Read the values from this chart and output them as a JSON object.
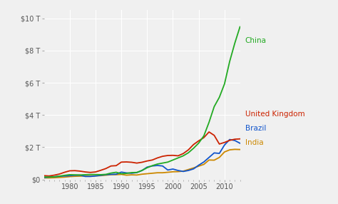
{
  "years": [
    1975,
    1976,
    1977,
    1978,
    1979,
    1980,
    1981,
    1982,
    1983,
    1984,
    1985,
    1986,
    1987,
    1988,
    1989,
    1990,
    1991,
    1992,
    1993,
    1994,
    1995,
    1996,
    1997,
    1998,
    1999,
    2000,
    2001,
    2002,
    2003,
    2004,
    2005,
    2006,
    2007,
    2008,
    2009,
    2010,
    2011,
    2012,
    2013
  ],
  "china": [
    0.16,
    0.15,
    0.17,
    0.21,
    0.26,
    0.3,
    0.29,
    0.28,
    0.3,
    0.31,
    0.31,
    0.3,
    0.32,
    0.4,
    0.45,
    0.36,
    0.38,
    0.43,
    0.44,
    0.56,
    0.73,
    0.86,
    0.96,
    1.02,
    1.08,
    1.21,
    1.34,
    1.47,
    1.66,
    1.94,
    2.26,
    2.71,
    3.55,
    4.52,
    5.1,
    5.93,
    7.32,
    8.46,
    9.47
  ],
  "uk": [
    0.24,
    0.22,
    0.27,
    0.34,
    0.45,
    0.54,
    0.55,
    0.52,
    0.47,
    0.44,
    0.47,
    0.57,
    0.68,
    0.84,
    0.86,
    1.08,
    1.09,
    1.07,
    1.02,
    1.07,
    1.15,
    1.21,
    1.34,
    1.44,
    1.49,
    1.5,
    1.47,
    1.61,
    1.84,
    2.17,
    2.4,
    2.6,
    2.95,
    2.74,
    2.2,
    2.3,
    2.43,
    2.5,
    2.52
  ],
  "brazil": [
    0.12,
    0.15,
    0.17,
    0.2,
    0.22,
    0.24,
    0.26,
    0.27,
    0.19,
    0.19,
    0.22,
    0.26,
    0.3,
    0.32,
    0.33,
    0.46,
    0.41,
    0.39,
    0.43,
    0.56,
    0.77,
    0.84,
    0.87,
    0.84,
    0.59,
    0.65,
    0.56,
    0.5,
    0.56,
    0.66,
    0.89,
    1.09,
    1.37,
    1.65,
    1.62,
    2.14,
    2.48,
    2.42,
    2.25
  ],
  "india": [
    0.1,
    0.1,
    0.11,
    0.13,
    0.15,
    0.18,
    0.2,
    0.21,
    0.22,
    0.21,
    0.23,
    0.24,
    0.27,
    0.3,
    0.3,
    0.32,
    0.27,
    0.29,
    0.28,
    0.33,
    0.36,
    0.39,
    0.42,
    0.42,
    0.45,
    0.48,
    0.49,
    0.52,
    0.62,
    0.72,
    0.83,
    0.94,
    1.21,
    1.2,
    1.37,
    1.71,
    1.84,
    1.87,
    1.86
  ],
  "china_color": "#22aa22",
  "uk_color": "#cc2200",
  "brazil_color": "#1155cc",
  "india_color": "#cc8800",
  "bg_color": "#f0f0f0",
  "grid_color": "#ffffff",
  "xlim": [
    1975,
    2013
  ],
  "ylim": [
    0,
    10.5
  ],
  "yticks": [
    0,
    2,
    4,
    6,
    8,
    10
  ],
  "ytick_labels": [
    "$0",
    "$2 T",
    "$4 T",
    "$6 T",
    "$8 T",
    "$10 T"
  ],
  "xticks": [
    1980,
    1985,
    1990,
    1995,
    2000,
    2005,
    2010
  ],
  "label_china": "China",
  "label_uk": "United Kingdom",
  "label_brazil": "Brazil",
  "label_india": "India"
}
